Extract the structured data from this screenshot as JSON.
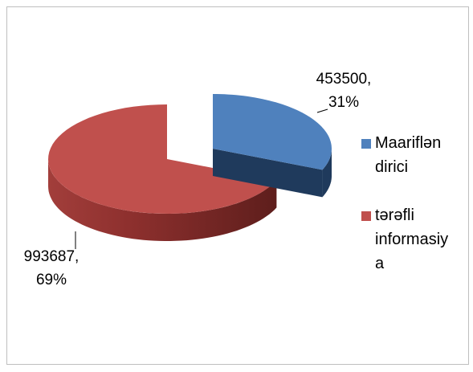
{
  "chart_data": {
    "type": "pie3d",
    "categories": [
      "Maarifləndirici",
      "tərəfli informasiya"
    ],
    "values": [
      453500,
      993687
    ],
    "value_labels": [
      "453500, 31%",
      "993687, 69%"
    ],
    "colors": [
      "#4f81bd",
      "#c0504d"
    ],
    "legend": "right"
  }
}
